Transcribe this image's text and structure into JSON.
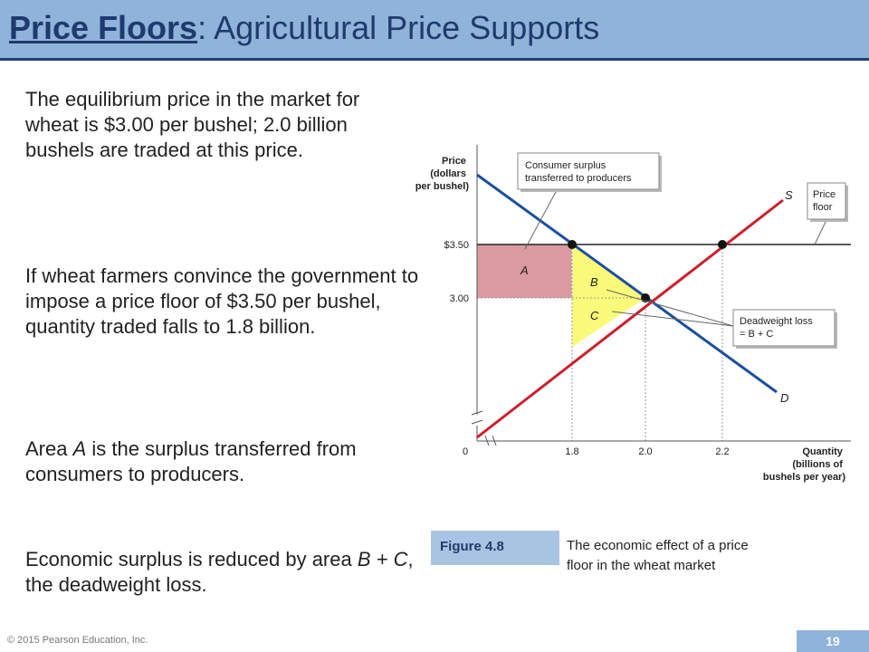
{
  "slide": {
    "title_main": "Price Floors",
    "title_rest": ": Agricultural Price Supports",
    "paragraphs": {
      "p1": "The equilibrium price in the market for wheat is $3.00 per bushel; 2.0 billion bushels are traded at this price.",
      "p2": "If wheat farmers convince the government to impose a price floor of $3.50 per bushel, quantity traded falls to 1.8 billion.",
      "p3_before": "Area ",
      "p3_italic": "A",
      "p3_after": " is the surplus transferred from consumers to producers.",
      "p4_before": "Economic surplus is reduced by area ",
      "p4_italic": "B + C",
      "p4_after": ", the deadweight loss."
    },
    "figure_label": "Figure 4.8",
    "figure_caption": "The economic effect of a price floor in the wheat market",
    "copyright": "© 2015 Pearson Education, Inc.",
    "page_number": "19"
  },
  "colors": {
    "title_bar": "#8fb3d9",
    "title_text": "#1f3a6e",
    "demand_line": "#1a4fa0",
    "supply_line": "#cc1f2b",
    "area_a": "#d99aa0",
    "area_bc": "#fafa7a"
  },
  "chart_data": {
    "type": "line",
    "ylabel": "Price (dollars per bushel)",
    "xlabel": "Quantity (billions of bushels per year)",
    "y_tick_labels": [
      "$3.50",
      "3.00"
    ],
    "x_tick_labels": [
      "0",
      "1.8",
      "2.0",
      "2.2"
    ],
    "series": [
      {
        "name": "D",
        "points": [
          [
            1.8,
            3.5
          ],
          [
            2.0,
            3.0
          ]
        ]
      },
      {
        "name": "S",
        "points": [
          [
            2.0,
            3.0
          ],
          [
            2.2,
            3.5
          ]
        ]
      }
    ],
    "price_floor": 3.5,
    "equilibrium": {
      "price": 3.0,
      "quantity": 2.0
    },
    "floor_points": [
      [
        1.8,
        3.5
      ],
      [
        2.2,
        3.5
      ]
    ],
    "areas": [
      "A",
      "B",
      "C"
    ],
    "callouts": {
      "consumer_surplus": "Consumer surplus transferred to producers",
      "price_floor": "Price floor",
      "deadweight": "Deadweight loss = B + C"
    }
  }
}
